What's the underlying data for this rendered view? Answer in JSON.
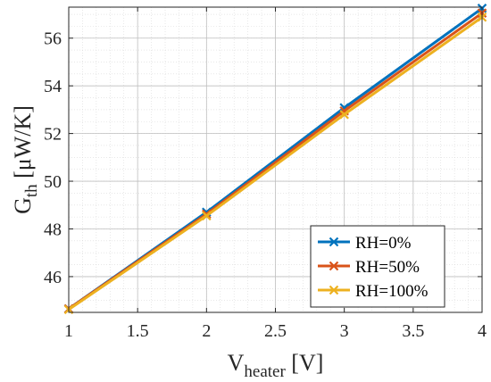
{
  "chart_data": {
    "type": "line",
    "x": [
      1,
      2,
      3,
      4
    ],
    "series": [
      {
        "name": "RH=0%",
        "color": "#0072BD",
        "values": [
          44.65,
          48.7,
          53.08,
          57.25
        ]
      },
      {
        "name": "RH=50%",
        "color": "#D95319",
        "values": [
          44.65,
          48.62,
          52.95,
          57.05
        ]
      },
      {
        "name": "RH=100%",
        "color": "#EDB120",
        "values": [
          44.62,
          48.55,
          52.8,
          56.88
        ]
      }
    ],
    "xlabel": {
      "main": "V",
      "sub": "heater",
      "rest": " [V]"
    },
    "ylabel": {
      "main": "G",
      "sub": "th",
      "rest": " [μW/K]"
    },
    "xlim": [
      1,
      4
    ],
    "ylim": [
      44.5,
      57.3
    ],
    "xticks": [
      "1",
      "1.5",
      "2",
      "2.5",
      "3",
      "3.5",
      "4"
    ],
    "yticks": [
      "46",
      "48",
      "50",
      "52",
      "54",
      "56"
    ],
    "marker": "x",
    "grid": "major and minor, dotted",
    "legend_position": "lower-right"
  }
}
